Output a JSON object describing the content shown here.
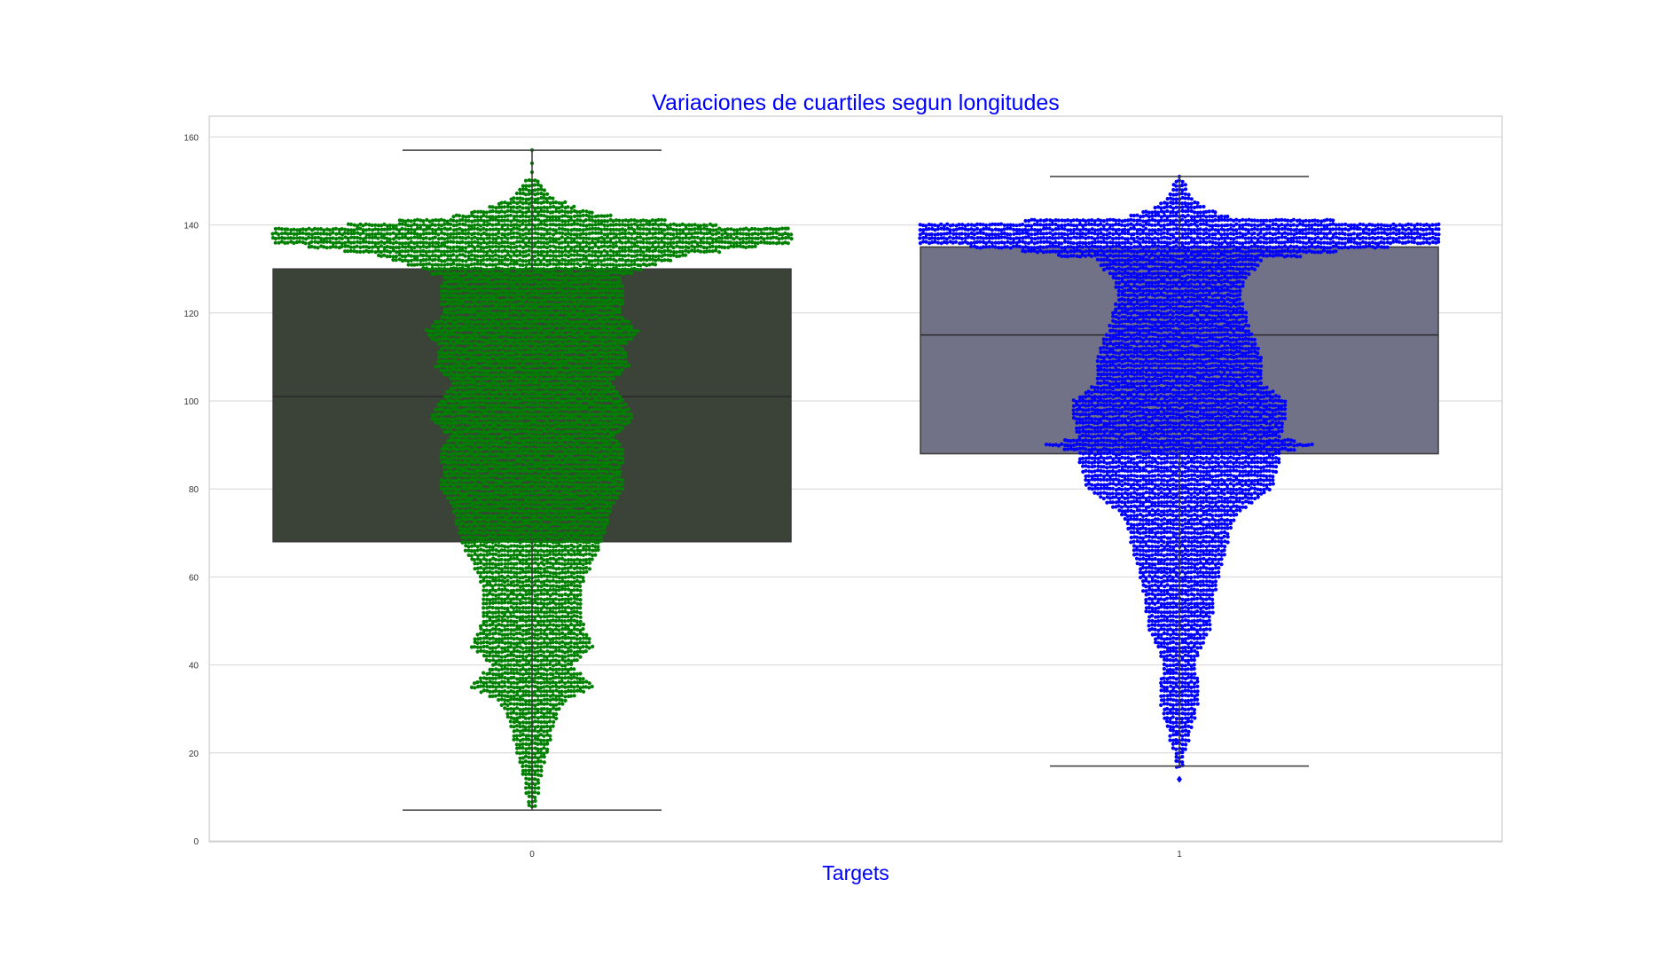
{
  "chart_data": {
    "type": "box",
    "title": "Variaciones de cuartiles segun longitudes",
    "xlabel": "Targets",
    "ylabel": "",
    "categories": [
      "0",
      "1"
    ],
    "ylim": [
      0,
      165
    ],
    "yticks": [
      0,
      20,
      40,
      60,
      80,
      100,
      120,
      140,
      160
    ],
    "grid": true,
    "overlay": "swarm",
    "title_color": "#0000ff",
    "xlabel_color": "#0000ff",
    "series": [
      {
        "category": "0",
        "box_color": "#3b4339",
        "point_color": "#008000",
        "whisker_low": 7,
        "q1": 68,
        "median": 101,
        "q3": 130,
        "whisker_high": 157,
        "outliers": []
      },
      {
        "category": "1",
        "box_color": "#717187",
        "point_color": "#0000ff",
        "whisker_low": 17,
        "q1": 88,
        "median": 115,
        "q3": 135,
        "whisker_high": 151,
        "outliers": [
          14
        ]
      }
    ]
  }
}
